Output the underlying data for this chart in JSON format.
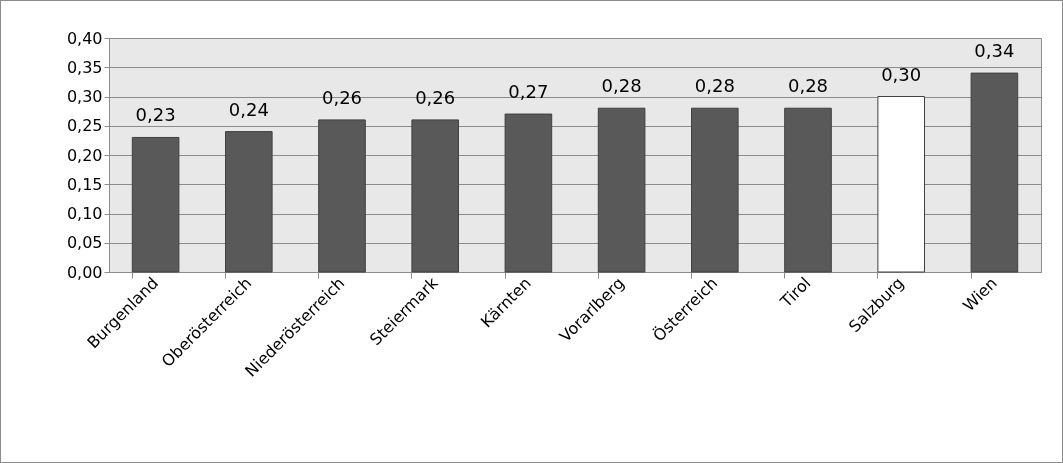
{
  "chart_data": {
    "type": "bar",
    "categories": [
      "Burgenland",
      "Oberösterreich",
      "Niederösterreich",
      "Steiermark",
      "Kärnten",
      "Vorarlberg",
      "Österreich",
      "Tirol",
      "Salzburg",
      "Wien"
    ],
    "values": [
      0.23,
      0.24,
      0.26,
      0.26,
      0.27,
      0.28,
      0.28,
      0.28,
      0.3,
      0.34
    ],
    "colors": [
      "#595959",
      "#595959",
      "#595959",
      "#595959",
      "#595959",
      "#595959",
      "#595959",
      "#595959",
      "#ffffff",
      "#595959"
    ],
    "ylim": [
      0,
      0.4
    ],
    "yticks": [
      {
        "value": 0,
        "label": "0,00"
      },
      {
        "value": 0.05,
        "label": "0,05"
      },
      {
        "value": 0.1,
        "label": "0,10"
      },
      {
        "value": 0.15,
        "label": "0,15"
      },
      {
        "value": 0.2,
        "label": "0,20"
      },
      {
        "value": 0.25,
        "label": "0,25"
      },
      {
        "value": 0.3,
        "label": "0,30"
      },
      {
        "value": 0.35,
        "label": "0,35"
      },
      {
        "value": 0.4,
        "label": "0,40"
      }
    ],
    "value_labels": [
      "0,23",
      "0,24",
      "0,26",
      "0,26",
      "0,27",
      "0,28",
      "0,28",
      "0,28",
      "0,30",
      "0,34"
    ],
    "grid": "y",
    "data_labels": true
  }
}
